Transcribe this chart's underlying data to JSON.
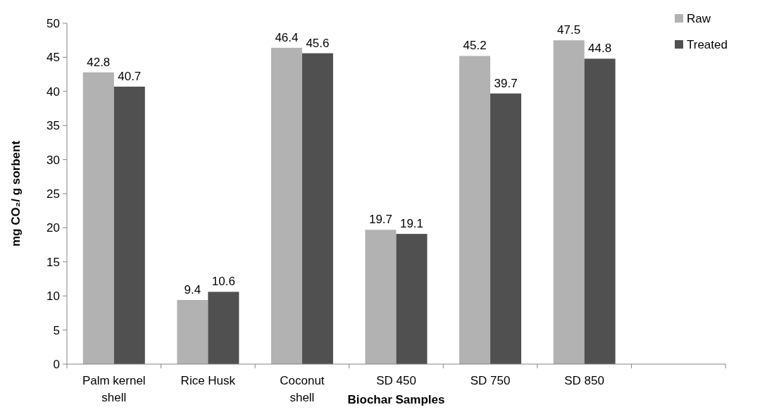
{
  "chart_data": {
    "type": "bar",
    "xlabel": "Biochar Samples",
    "ylabel": "mg CO₂/ g sorbent",
    "categories": [
      "Palm kernel shell",
      "Rice Husk",
      "Coconut shell",
      "SD 450",
      "SD 750",
      "SD 850",
      null
    ],
    "series": [
      {
        "name": "Raw",
        "color": "#b2b2b2",
        "values": [
          42.8,
          9.4,
          46.4,
          19.7,
          45.2,
          47.5,
          null
        ]
      },
      {
        "name": "Treated",
        "color": "#505050",
        "values": [
          40.7,
          10.6,
          45.6,
          19.1,
          39.7,
          44.8,
          null
        ]
      }
    ],
    "ylim": [
      0,
      50
    ],
    "yticks": [
      0,
      5,
      10,
      15,
      20,
      25,
      30,
      35,
      40,
      45,
      50
    ],
    "data_labels": true,
    "legend": "top right",
    "grid": false
  }
}
